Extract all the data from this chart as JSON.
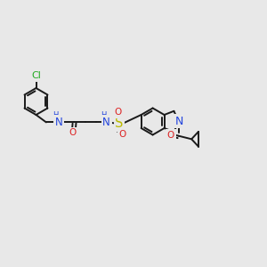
{
  "bg": "#e8e8e8",
  "bc": "#1a1a1a",
  "bw": 1.4,
  "ac": {
    "N": "#2244dd",
    "O": "#dd2222",
    "S": "#bbbb00",
    "Cl": "#22aa22"
  },
  "fs": 8.0,
  "xlim": [
    0,
    10
  ],
  "ylim": [
    0,
    10
  ]
}
